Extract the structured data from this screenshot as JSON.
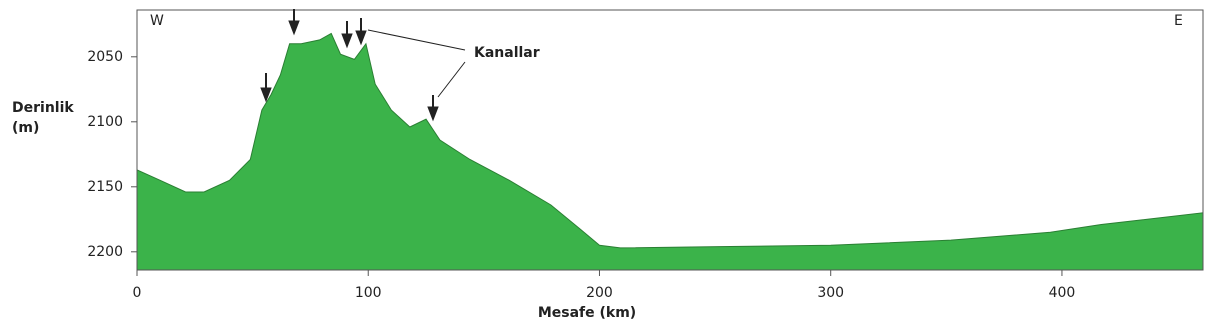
{
  "chart_data": {
    "type": "area",
    "x_label": "Mesafe (km)",
    "y_label_lines": [
      "Derinlik",
      "(m)"
    ],
    "annotations": {
      "west": "W",
      "east": "E",
      "channels": "Kanallar"
    },
    "x": [
      0,
      10,
      21,
      29,
      40,
      49,
      54,
      58,
      62,
      66,
      71,
      79,
      84,
      88,
      94,
      99,
      103,
      110,
      118,
      125,
      131,
      144,
      161,
      179,
      192,
      200,
      209,
      252,
      300,
      352,
      395,
      417,
      461
    ],
    "values": [
      2137,
      2145,
      2154,
      2154,
      2145,
      2129,
      2091,
      2079,
      2064,
      2040,
      2040,
      2037,
      2032,
      2048,
      2052,
      2040,
      2071,
      2091,
      2104,
      2098,
      2114,
      2129,
      2145,
      2164,
      2183,
      2195,
      2197,
      2196,
      2195,
      2191,
      2185,
      2179,
      2170
    ],
    "color": "#3bb34a",
    "xlim": [
      0,
      461
    ],
    "xticks": [
      0,
      100,
      200,
      300,
      400
    ],
    "ylim": [
      2214,
      2014
    ],
    "yticks": [
      2050,
      2100,
      2150,
      2200
    ],
    "y_inverted": true
  }
}
